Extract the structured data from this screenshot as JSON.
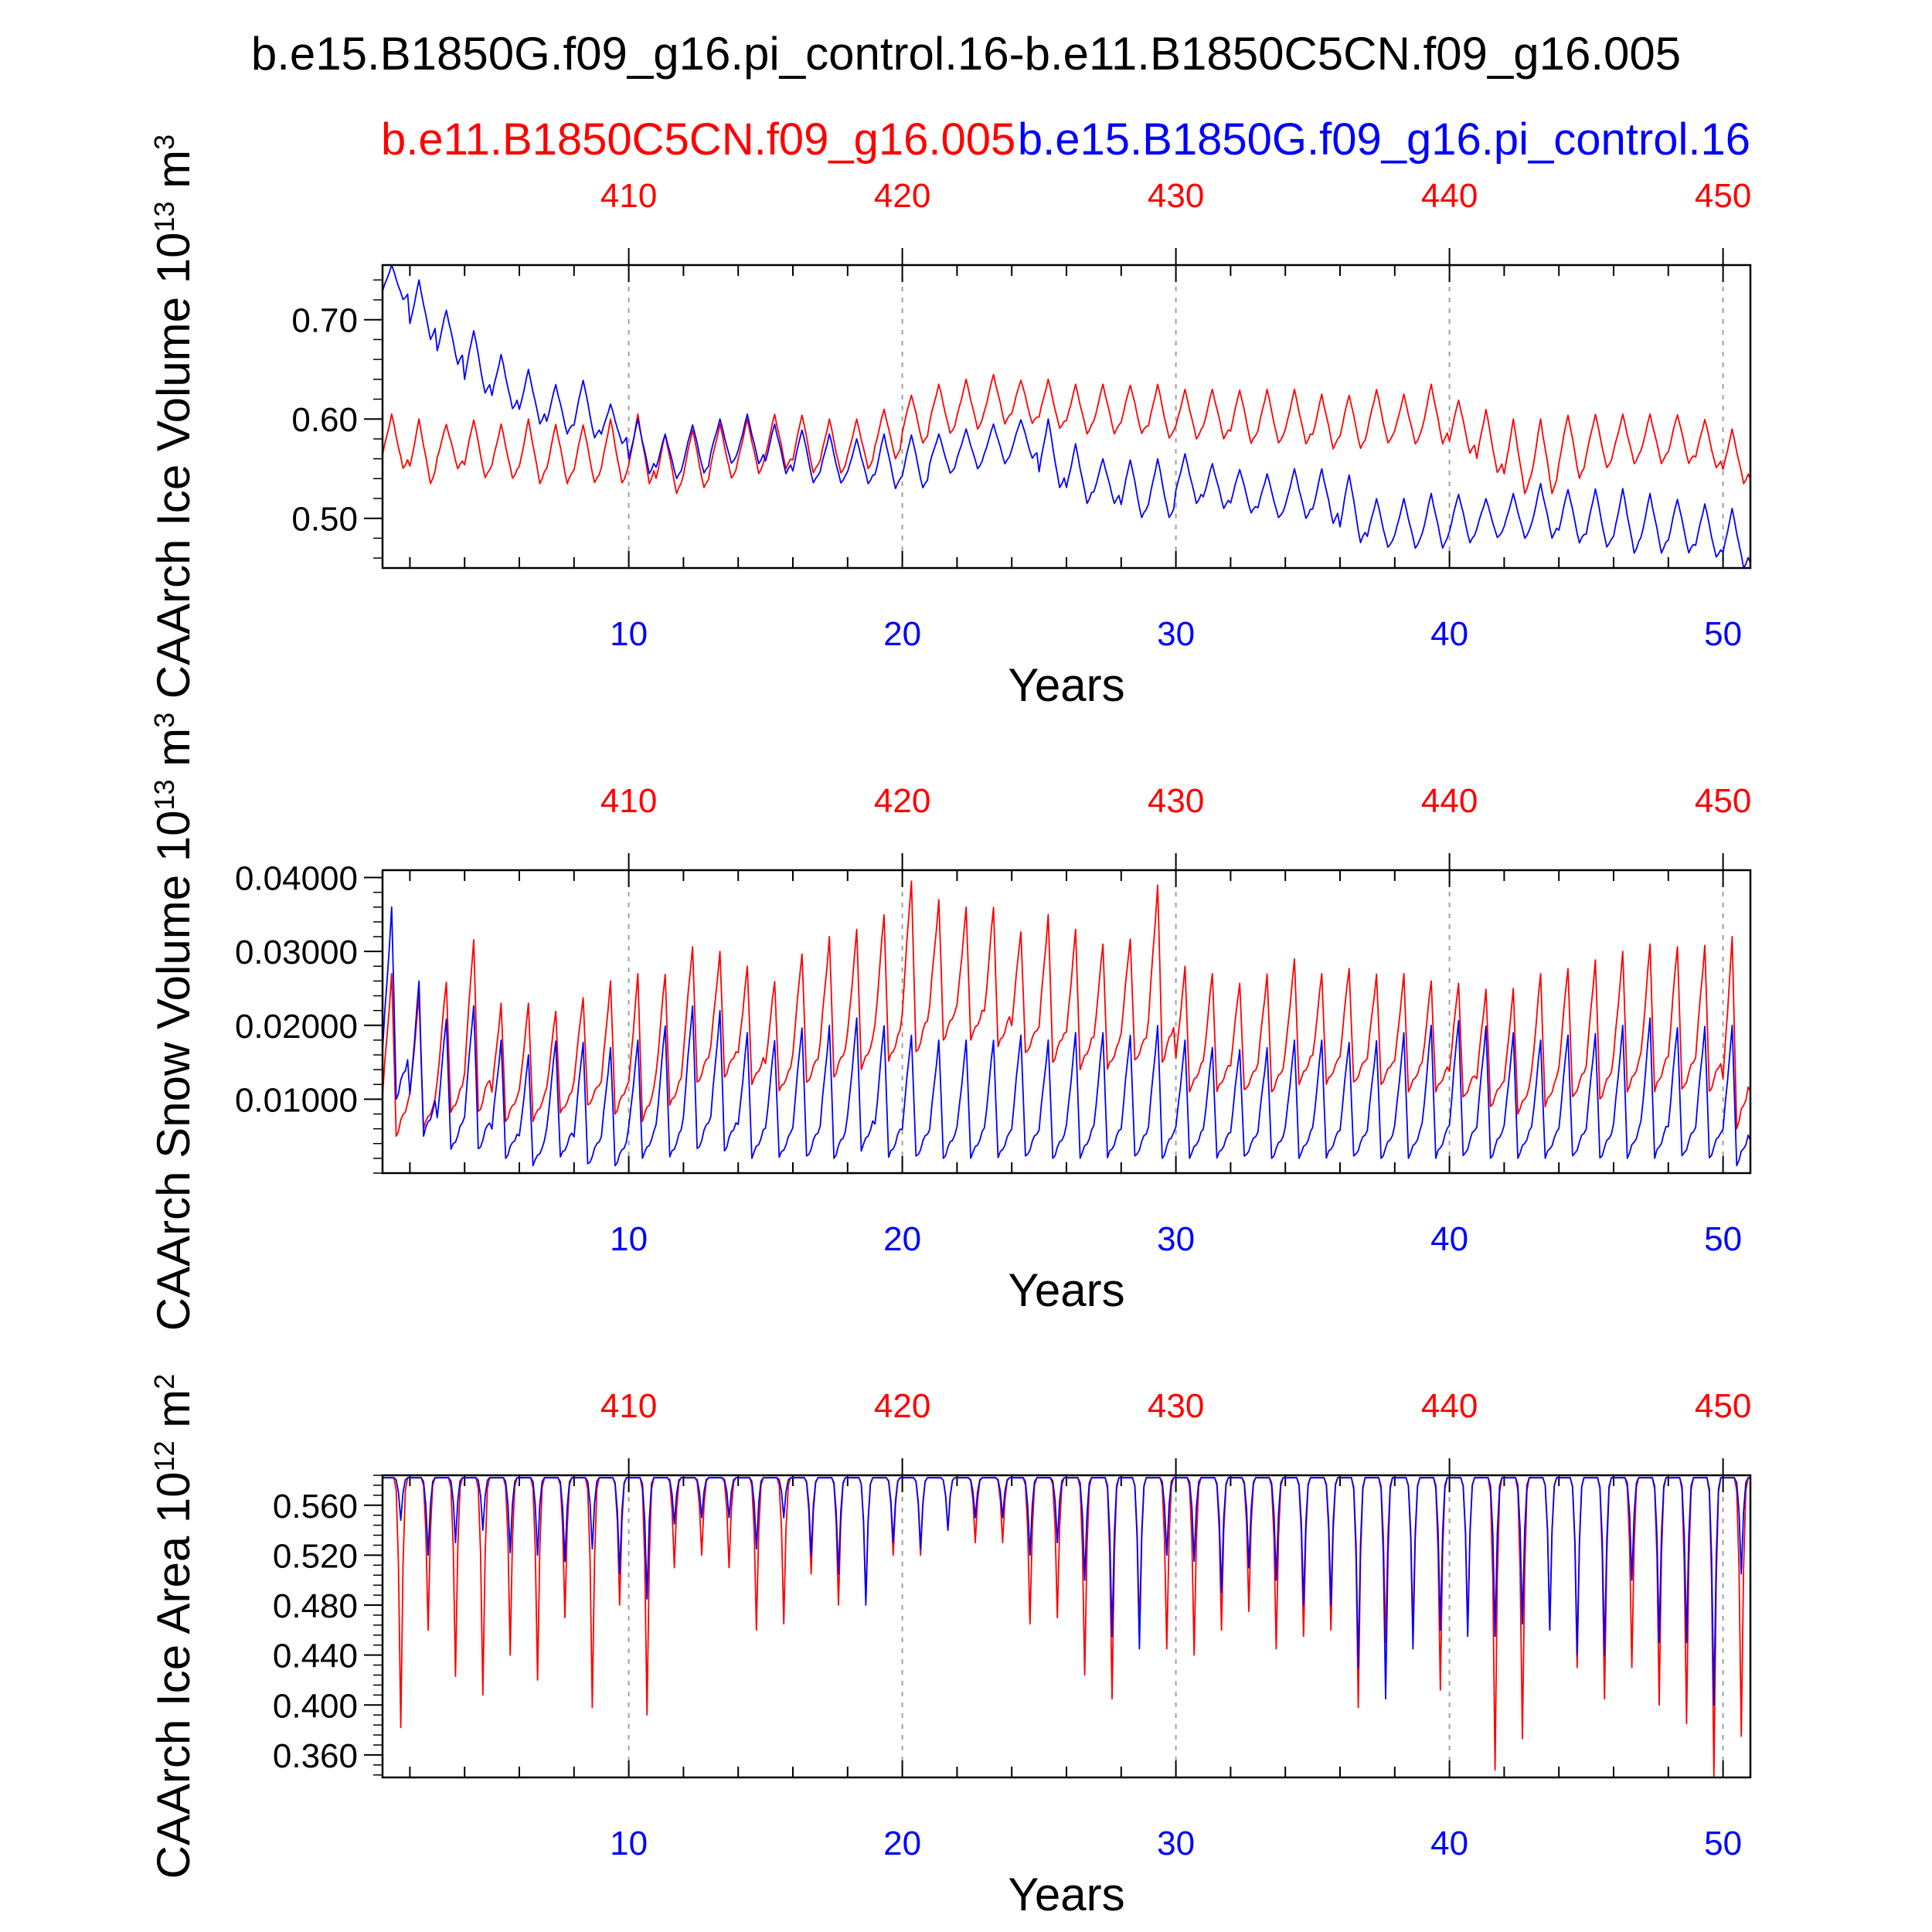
{
  "title": "b.e15.B1850G.f09_g16.pi_control.16-b.e11.B1850C5CN.f09_g16.005",
  "legend": {
    "red_label": "b.e11.B1850C5CN.f09_g16.005",
    "blue_label": "b.e15.B1850G.f09_g16.pi_control.16",
    "red_color": "#ff0000",
    "blue_color": "#0000ff"
  },
  "chart_data": [
    {
      "type": "line",
      "ylabel": "CAArch Ice Volume 10",
      "ylabel_exp": "13",
      "ylabel_unit": " m",
      "ylabel_unit_exp": "3",
      "xlabel": "Years",
      "xlim": [
        1,
        51
      ],
      "ylim": [
        0.45,
        0.755
      ],
      "yticks": [
        0.5,
        0.6,
        0.7
      ],
      "ytick_labels": [
        "0.50",
        "0.60",
        "0.70"
      ],
      "bottom_ticks": [
        10,
        20,
        30,
        40,
        50
      ],
      "bottom_tick_labels": [
        "10",
        "20",
        "30",
        "40",
        "50"
      ],
      "top_ticks": [
        10,
        20,
        30,
        40,
        50
      ],
      "top_tick_labels": [
        "410",
        "420",
        "430",
        "440",
        "450"
      ],
      "series": [
        {
          "name": "b.e11.B1850C5CN.f09_g16.005",
          "color": "#ff0000",
          "annual_max": [
            0.605,
            0.6,
            0.595,
            0.6,
            0.595,
            0.6,
            0.595,
            0.595,
            0.6,
            0.605,
            0.585,
            0.59,
            0.595,
            0.6,
            0.605,
            0.605,
            0.6,
            0.6,
            0.61,
            0.625,
            0.635,
            0.64,
            0.645,
            0.64,
            0.64,
            0.635,
            0.635,
            0.635,
            0.635,
            0.63,
            0.63,
            0.63,
            0.63,
            0.63,
            0.625,
            0.625,
            0.63,
            0.625,
            0.635,
            0.62,
            0.61,
            0.6,
            0.6,
            0.605,
            0.605,
            0.605,
            0.605,
            0.605,
            0.6,
            0.59,
            0.58
          ],
          "annual_min": [
            0.55,
            0.535,
            0.55,
            0.54,
            0.54,
            0.535,
            0.535,
            0.535,
            0.535,
            0.535,
            0.525,
            0.53,
            0.54,
            0.545,
            0.55,
            0.545,
            0.545,
            0.55,
            0.56,
            0.575,
            0.585,
            0.59,
            0.595,
            0.595,
            0.59,
            0.585,
            0.585,
            0.585,
            0.58,
            0.58,
            0.58,
            0.575,
            0.575,
            0.575,
            0.57,
            0.57,
            0.575,
            0.575,
            0.575,
            0.565,
            0.545,
            0.525,
            0.525,
            0.54,
            0.55,
            0.555,
            0.555,
            0.555,
            0.55,
            0.535,
            0.525
          ]
        },
        {
          "name": "b.e15.B1850G.f09_g16.pi_control.16",
          "color": "#0000ff",
          "annual_max": [
            0.755,
            0.74,
            0.71,
            0.69,
            0.665,
            0.65,
            0.635,
            0.64,
            0.615,
            0.6,
            0.585,
            0.595,
            0.6,
            0.605,
            0.595,
            0.59,
            0.585,
            0.58,
            0.585,
            0.585,
            0.585,
            0.59,
            0.595,
            0.6,
            0.6,
            0.575,
            0.56,
            0.56,
            0.56,
            0.565,
            0.555,
            0.55,
            0.545,
            0.55,
            0.55,
            0.545,
            0.52,
            0.52,
            0.525,
            0.525,
            0.52,
            0.525,
            0.535,
            0.53,
            0.53,
            0.53,
            0.525,
            0.52,
            0.515,
            0.51,
            0.47
          ],
          "annual_min": [
            0.72,
            0.68,
            0.655,
            0.625,
            0.61,
            0.595,
            0.585,
            0.58,
            0.575,
            0.545,
            0.54,
            0.545,
            0.555,
            0.555,
            0.545,
            0.535,
            0.535,
            0.535,
            0.53,
            0.53,
            0.545,
            0.55,
            0.555,
            0.56,
            0.53,
            0.515,
            0.515,
            0.5,
            0.5,
            0.515,
            0.51,
            0.505,
            0.5,
            0.5,
            0.495,
            0.475,
            0.47,
            0.47,
            0.47,
            0.475,
            0.48,
            0.48,
            0.48,
            0.475,
            0.47,
            0.465,
            0.465,
            0.465,
            0.46,
            0.45,
            0.45
          ]
        }
      ]
    },
    {
      "type": "line",
      "ylabel": "CAArch Snow Volume 10",
      "ylabel_exp": "13",
      "ylabel_unit": " m",
      "ylabel_unit_exp": "3",
      "xlabel": "Years",
      "xlim": [
        1,
        51
      ],
      "ylim": [
        0.0,
        0.041
      ],
      "yticks": [
        0.01,
        0.02,
        0.03,
        0.04
      ],
      "ytick_labels": [
        "0.01000",
        "0.02000",
        "0.03000",
        "0.04000"
      ],
      "bottom_ticks": [
        10,
        20,
        30,
        40,
        50
      ],
      "bottom_tick_labels": [
        "10",
        "20",
        "30",
        "40",
        "50"
      ],
      "top_ticks": [
        10,
        20,
        30,
        40,
        50
      ],
      "top_tick_labels": [
        "410",
        "420",
        "430",
        "440",
        "450"
      ],
      "series": [
        {
          "name": "b.e11.B1850C5CN.f09_g16.005",
          "color": "#ff0000",
          "annual_max": [
            0.027,
            0.024,
            0.026,
            0.032,
            0.023,
            0.023,
            0.022,
            0.024,
            0.026,
            0.027,
            0.027,
            0.031,
            0.03,
            0.028,
            0.026,
            0.03,
            0.032,
            0.033,
            0.035,
            0.04,
            0.037,
            0.036,
            0.036,
            0.033,
            0.035,
            0.033,
            0.031,
            0.032,
            0.039,
            0.028,
            0.027,
            0.026,
            0.027,
            0.029,
            0.027,
            0.028,
            0.027,
            0.027,
            0.026,
            0.026,
            0.025,
            0.025,
            0.027,
            0.028,
            0.029,
            0.03,
            0.031,
            0.031,
            0.031,
            0.032,
            0.025
          ],
          "annual_min": [
            0.005,
            0.006,
            0.008,
            0.008,
            0.007,
            0.007,
            0.008,
            0.009,
            0.008,
            0.007,
            0.009,
            0.012,
            0.013,
            0.012,
            0.011,
            0.012,
            0.013,
            0.014,
            0.015,
            0.016,
            0.018,
            0.018,
            0.017,
            0.016,
            0.015,
            0.014,
            0.014,
            0.015,
            0.015,
            0.011,
            0.011,
            0.011,
            0.011,
            0.012,
            0.012,
            0.012,
            0.012,
            0.011,
            0.011,
            0.01,
            0.009,
            0.008,
            0.009,
            0.01,
            0.01,
            0.011,
            0.011,
            0.011,
            0.011,
            0.006,
            0.006
          ]
        },
        {
          "name": "b.e15.B1850G.f09_g16.pi_control.16",
          "color": "#0000ff",
          "annual_max": [
            0.036,
            0.026,
            0.021,
            0.023,
            0.018,
            0.016,
            0.018,
            0.018,
            0.017,
            0.018,
            0.02,
            0.023,
            0.022,
            0.019,
            0.018,
            0.02,
            0.02,
            0.021,
            0.02,
            0.019,
            0.018,
            0.018,
            0.018,
            0.019,
            0.018,
            0.019,
            0.019,
            0.019,
            0.02,
            0.018,
            0.017,
            0.017,
            0.017,
            0.018,
            0.018,
            0.018,
            0.018,
            0.019,
            0.02,
            0.021,
            0.02,
            0.019,
            0.018,
            0.019,
            0.019,
            0.02,
            0.021,
            0.02,
            0.02,
            0.02,
            0.014
          ],
          "annual_min": [
            0.01,
            0.005,
            0.003,
            0.003,
            0.002,
            0.001,
            0.002,
            0.001,
            0.001,
            0.002,
            0.002,
            0.003,
            0.003,
            0.002,
            0.002,
            0.002,
            0.002,
            0.003,
            0.002,
            0.002,
            0.002,
            0.002,
            0.002,
            0.002,
            0.002,
            0.002,
            0.002,
            0.002,
            0.002,
            0.002,
            0.002,
            0.002,
            0.002,
            0.002,
            0.002,
            0.002,
            0.002,
            0.002,
            0.002,
            0.002,
            0.002,
            0.002,
            0.002,
            0.002,
            0.002,
            0.002,
            0.002,
            0.002,
            0.002,
            0.001,
            0.001
          ]
        }
      ]
    },
    {
      "type": "line",
      "ylabel": "CAArch Ice Area 10",
      "ylabel_exp": "12",
      "ylabel_unit": " m",
      "ylabel_unit_exp": "2",
      "xlabel": "Years",
      "xlim": [
        1,
        51
      ],
      "ylim": [
        0.342,
        0.584
      ],
      "yticks": [
        0.36,
        0.4,
        0.44,
        0.48,
        0.52,
        0.56
      ],
      "ytick_labels": [
        "0.360",
        "0.400",
        "0.440",
        "0.480",
        "0.520",
        "0.560"
      ],
      "bottom_ticks": [
        10,
        20,
        30,
        40,
        50
      ],
      "bottom_tick_labels": [
        "10",
        "20",
        "30",
        "40",
        "50"
      ],
      "top_ticks": [
        10,
        20,
        30,
        40,
        50
      ],
      "top_tick_labels": [
        "410",
        "420",
        "430",
        "440",
        "450"
      ],
      "annual_max": 0.582,
      "series": [
        {
          "name": "b.e11.B1850C5CN.f09_g16.005",
          "color": "#ff0000",
          "annual_min": [
            0.382,
            0.46,
            0.423,
            0.408,
            0.44,
            0.42,
            0.47,
            0.398,
            0.48,
            0.392,
            0.51,
            0.52,
            0.51,
            0.46,
            0.465,
            0.505,
            0.48,
            0.485,
            0.52,
            0.52,
            0.54,
            0.53,
            0.53,
            0.465,
            0.47,
            0.424,
            0.405,
            0.46,
            0.445,
            0.44,
            0.46,
            0.475,
            0.445,
            0.455,
            0.46,
            0.398,
            0.45,
            0.46,
            0.412,
            0.46,
            0.348,
            0.373,
            0.46,
            0.43,
            0.405,
            0.43,
            0.4,
            0.385,
            0.343,
            0.375,
            0.505
          ]
        },
        {
          "name": "b.e15.B1850G.f09_g16.pi_control.16",
          "color": "#0000ff",
          "annual_min": [
            0.548,
            0.52,
            0.53,
            0.54,
            0.522,
            0.52,
            0.515,
            0.525,
            0.505,
            0.485,
            0.545,
            0.55,
            0.55,
            0.525,
            0.55,
            0.52,
            0.505,
            0.48,
            0.53,
            0.525,
            0.54,
            0.55,
            0.55,
            0.52,
            0.53,
            0.5,
            0.455,
            0.445,
            0.52,
            0.515,
            0.49,
            0.51,
            0.5,
            0.48,
            0.48,
            0.43,
            0.405,
            0.445,
            0.46,
            0.455,
            0.455,
            0.465,
            0.46,
            0.44,
            0.44,
            0.5,
            0.45,
            0.45,
            0.4,
            0.505,
            0.51
          ]
        }
      ]
    }
  ]
}
